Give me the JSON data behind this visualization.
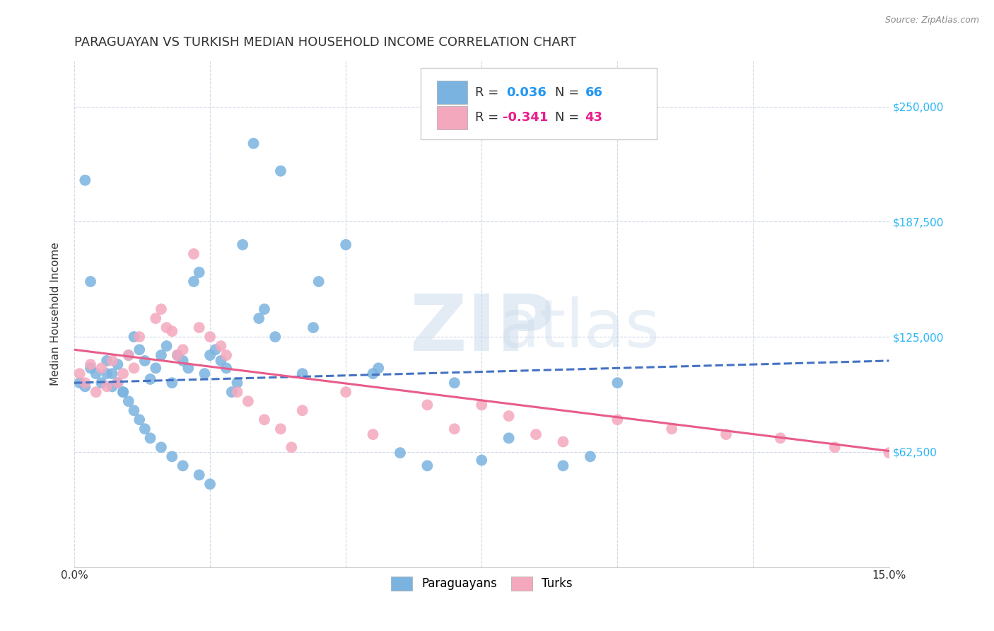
{
  "title": "PARAGUAYAN VS TURKISH MEDIAN HOUSEHOLD INCOME CORRELATION CHART",
  "source": "Source: ZipAtlas.com",
  "ylabel": "Median Household Income",
  "xlim": [
    0.0,
    0.15
  ],
  "ylim": [
    0,
    275000
  ],
  "yticks": [
    62500,
    125000,
    187500,
    250000
  ],
  "ytick_labels": [
    "$62,500",
    "$125,000",
    "$187,500",
    "$250,000"
  ],
  "xticks": [
    0.0,
    0.025,
    0.05,
    0.075,
    0.1,
    0.125,
    0.15
  ],
  "blue_color": "#7ab3e0",
  "pink_color": "#f4a8be",
  "blue_line_color": "#4472c4",
  "pink_line_color": "#e85c8a",
  "blue_scatter_x": [
    0.001,
    0.002,
    0.003,
    0.004,
    0.005,
    0.006,
    0.007,
    0.008,
    0.009,
    0.01,
    0.011,
    0.012,
    0.013,
    0.014,
    0.015,
    0.016,
    0.017,
    0.018,
    0.019,
    0.02,
    0.021,
    0.022,
    0.023,
    0.024,
    0.025,
    0.026,
    0.027,
    0.028,
    0.029,
    0.03,
    0.031,
    0.033,
    0.034,
    0.035,
    0.037,
    0.038,
    0.042,
    0.044,
    0.045,
    0.05,
    0.055,
    0.056,
    0.06,
    0.065,
    0.07,
    0.075,
    0.08,
    0.09,
    0.095,
    0.1,
    0.002,
    0.003,
    0.006,
    0.007,
    0.008,
    0.009,
    0.01,
    0.011,
    0.012,
    0.013,
    0.014,
    0.016,
    0.018,
    0.02,
    0.023,
    0.025
  ],
  "blue_scatter_y": [
    100000,
    210000,
    155000,
    105000,
    100000,
    105000,
    98000,
    110000,
    95000,
    115000,
    125000,
    118000,
    112000,
    102000,
    108000,
    115000,
    120000,
    100000,
    115000,
    112000,
    108000,
    155000,
    160000,
    105000,
    115000,
    118000,
    112000,
    108000,
    95000,
    100000,
    175000,
    230000,
    135000,
    140000,
    125000,
    215000,
    105000,
    130000,
    155000,
    175000,
    105000,
    108000,
    62000,
    55000,
    100000,
    58000,
    70000,
    55000,
    60000,
    100000,
    98000,
    108000,
    112000,
    105000,
    100000,
    95000,
    90000,
    85000,
    80000,
    75000,
    70000,
    65000,
    60000,
    55000,
    50000,
    45000
  ],
  "pink_scatter_x": [
    0.001,
    0.002,
    0.003,
    0.004,
    0.005,
    0.006,
    0.007,
    0.008,
    0.009,
    0.01,
    0.011,
    0.012,
    0.015,
    0.016,
    0.017,
    0.018,
    0.019,
    0.02,
    0.022,
    0.023,
    0.025,
    0.027,
    0.028,
    0.03,
    0.032,
    0.035,
    0.038,
    0.04,
    0.042,
    0.05,
    0.055,
    0.065,
    0.07,
    0.075,
    0.08,
    0.085,
    0.09,
    0.1,
    0.11,
    0.12,
    0.13,
    0.14,
    0.15
  ],
  "pink_scatter_y": [
    105000,
    100000,
    110000,
    95000,
    108000,
    98000,
    112000,
    100000,
    105000,
    115000,
    108000,
    125000,
    135000,
    140000,
    130000,
    128000,
    115000,
    118000,
    170000,
    130000,
    125000,
    120000,
    115000,
    95000,
    90000,
    80000,
    75000,
    65000,
    85000,
    95000,
    72000,
    88000,
    75000,
    88000,
    82000,
    72000,
    68000,
    80000,
    75000,
    72000,
    70000,
    65000,
    62000
  ],
  "blue_trend_x": [
    0.0,
    0.15
  ],
  "blue_trend_y": [
    100000,
    112000
  ],
  "pink_trend_x": [
    0.0,
    0.15
  ],
  "pink_trend_y": [
    118000,
    63000
  ],
  "background_color": "#ffffff",
  "grid_color": "#d0d8e8",
  "title_fontsize": 13,
  "axis_label_fontsize": 11,
  "tick_fontsize": 11
}
